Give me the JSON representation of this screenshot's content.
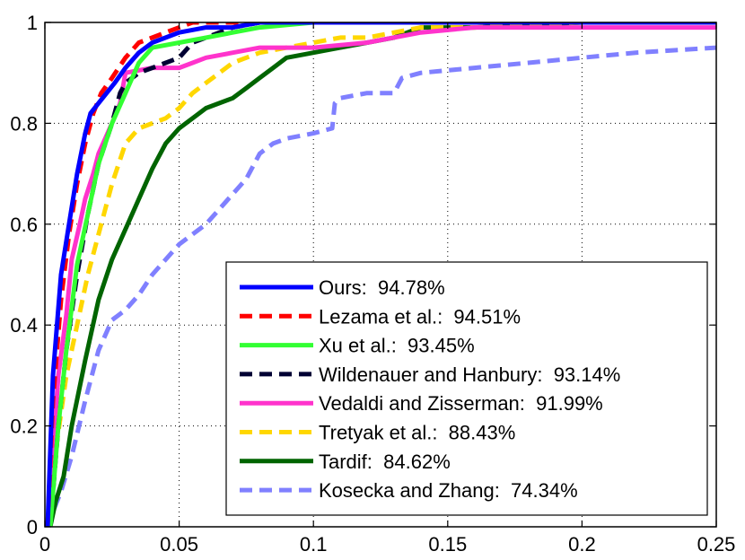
{
  "chart_data": {
    "type": "line",
    "title": "",
    "xlabel": "",
    "ylabel": "",
    "xlim": [
      0,
      0.25
    ],
    "ylim": [
      0,
      1
    ],
    "xticks": [
      0,
      0.05,
      0.1,
      0.15,
      0.2,
      0.25
    ],
    "xtick_labels": [
      "0",
      "0.05",
      "0.1",
      "0.15",
      "0.2",
      "0.25"
    ],
    "yticks": [
      0,
      0.2,
      0.4,
      0.6,
      0.8,
      1
    ],
    "ytick_labels": [
      "0",
      "0.2",
      "0.4",
      "0.6",
      "0.8",
      "1"
    ],
    "grid": true,
    "legend_position": "bottom-right",
    "series": [
      {
        "name": "Kosecka and Zhang:  74.34%",
        "color": "#8080ff",
        "dash": "dashed",
        "x": [
          0.001,
          0.003,
          0.006,
          0.01,
          0.015,
          0.02,
          0.025,
          0.03,
          0.035,
          0.04,
          0.045,
          0.05,
          0.055,
          0.06,
          0.065,
          0.07,
          0.075,
          0.08,
          0.085,
          0.09,
          0.1,
          0.107,
          0.108,
          0.11,
          0.12,
          0.13,
          0.133,
          0.14,
          0.16,
          0.18,
          0.2,
          0.22,
          0.25
        ],
        "y": [
          0,
          0.03,
          0.07,
          0.14,
          0.25,
          0.35,
          0.41,
          0.43,
          0.46,
          0.5,
          0.53,
          0.56,
          0.58,
          0.6,
          0.63,
          0.66,
          0.69,
          0.74,
          0.76,
          0.77,
          0.78,
          0.79,
          0.84,
          0.85,
          0.86,
          0.86,
          0.89,
          0.9,
          0.91,
          0.92,
          0.93,
          0.94,
          0.95
        ]
      },
      {
        "name": "Tardif:  84.62%",
        "color": "#006400",
        "dash": "solid",
        "x": [
          0.002,
          0.004,
          0.007,
          0.01,
          0.015,
          0.02,
          0.025,
          0.03,
          0.035,
          0.04,
          0.045,
          0.05,
          0.055,
          0.06,
          0.065,
          0.07,
          0.075,
          0.08,
          0.085,
          0.09,
          0.1,
          0.11,
          0.12,
          0.13,
          0.14,
          0.16,
          0.2,
          0.25
        ],
        "y": [
          0,
          0.05,
          0.1,
          0.2,
          0.33,
          0.45,
          0.53,
          0.59,
          0.65,
          0.71,
          0.76,
          0.79,
          0.81,
          0.83,
          0.84,
          0.85,
          0.87,
          0.89,
          0.91,
          0.93,
          0.94,
          0.95,
          0.96,
          0.97,
          0.99,
          0.99,
          1.0,
          1.0
        ]
      },
      {
        "name": "Tretyak et al.:  88.43%",
        "color": "#ffd700",
        "dash": "dashed",
        "x": [
          0.001,
          0.004,
          0.008,
          0.012,
          0.016,
          0.02,
          0.025,
          0.03,
          0.035,
          0.04,
          0.045,
          0.05,
          0.055,
          0.06,
          0.065,
          0.07,
          0.075,
          0.08,
          0.09,
          0.1,
          0.11,
          0.12,
          0.13,
          0.14,
          0.16,
          0.2,
          0.25
        ],
        "y": [
          0,
          0.15,
          0.3,
          0.4,
          0.5,
          0.58,
          0.68,
          0.76,
          0.79,
          0.8,
          0.81,
          0.83,
          0.86,
          0.88,
          0.9,
          0.92,
          0.93,
          0.94,
          0.95,
          0.96,
          0.97,
          0.97,
          0.98,
          0.99,
          0.99,
          1.0,
          1.0
        ]
      },
      {
        "name": "Vedaldi and Zisserman:  91.99%",
        "color": "#ff33cc",
        "dash": "solid",
        "x": [
          0.001,
          0.003,
          0.005,
          0.008,
          0.01,
          0.013,
          0.015,
          0.018,
          0.02,
          0.025,
          0.028,
          0.03,
          0.04,
          0.05,
          0.055,
          0.06,
          0.07,
          0.08,
          0.09,
          0.1,
          0.12,
          0.14,
          0.16,
          0.2,
          0.25
        ],
        "y": [
          0,
          0.15,
          0.3,
          0.42,
          0.53,
          0.6,
          0.65,
          0.7,
          0.74,
          0.8,
          0.84,
          0.9,
          0.91,
          0.91,
          0.92,
          0.93,
          0.94,
          0.95,
          0.95,
          0.95,
          0.96,
          0.98,
          0.99,
          0.99,
          0.99
        ]
      },
      {
        "name": "Wildenauer and Hanbury:  93.14%",
        "color": "#000033",
        "dash": "dashed",
        "x": [
          0.002,
          0.005,
          0.008,
          0.012,
          0.016,
          0.02,
          0.025,
          0.028,
          0.03,
          0.035,
          0.04,
          0.045,
          0.05,
          0.055,
          0.06,
          0.07,
          0.08,
          0.1,
          0.15,
          0.25
        ],
        "y": [
          0,
          0.2,
          0.35,
          0.5,
          0.62,
          0.72,
          0.8,
          0.86,
          0.88,
          0.9,
          0.91,
          0.92,
          0.93,
          0.96,
          0.97,
          0.99,
          1.0,
          1.0,
          1.0,
          1.0
        ]
      },
      {
        "name": "Xu et al.:  93.45%",
        "color": "#33ff33",
        "dash": "solid",
        "x": [
          0.002,
          0.005,
          0.008,
          0.012,
          0.016,
          0.02,
          0.025,
          0.03,
          0.035,
          0.04,
          0.05,
          0.06,
          0.07,
          0.08,
          0.1,
          0.15,
          0.25
        ],
        "y": [
          0,
          0.2,
          0.35,
          0.52,
          0.62,
          0.72,
          0.8,
          0.86,
          0.92,
          0.95,
          0.96,
          0.97,
          0.98,
          0.99,
          1.0,
          1.0,
          1.0
        ]
      },
      {
        "name": "Lezama et al.:  94.51%",
        "color": "#ff0000",
        "dash": "dashed",
        "x": [
          0.001,
          0.003,
          0.006,
          0.009,
          0.012,
          0.015,
          0.018,
          0.021,
          0.025,
          0.03,
          0.035,
          0.04,
          0.045,
          0.05,
          0.055,
          0.06,
          0.07,
          0.1,
          0.15,
          0.25
        ],
        "y": [
          0,
          0.25,
          0.45,
          0.58,
          0.68,
          0.76,
          0.82,
          0.86,
          0.89,
          0.93,
          0.96,
          0.97,
          0.98,
          0.99,
          1.0,
          1.0,
          1.0,
          1.0,
          1.0,
          1.0
        ]
      },
      {
        "name": "Ours:  94.78%",
        "color": "#0000ff",
        "dash": "solid",
        "x": [
          0.001,
          0.003,
          0.006,
          0.009,
          0.012,
          0.015,
          0.017,
          0.02,
          0.023,
          0.026,
          0.03,
          0.035,
          0.04,
          0.045,
          0.05,
          0.06,
          0.07,
          0.08,
          0.1,
          0.15,
          0.25
        ],
        "y": [
          0,
          0.3,
          0.5,
          0.6,
          0.7,
          0.78,
          0.82,
          0.84,
          0.86,
          0.88,
          0.91,
          0.94,
          0.96,
          0.97,
          0.98,
          0.99,
          0.99,
          1.0,
          1.0,
          1.0,
          1.0
        ]
      }
    ],
    "legend_order": [
      "Ours:  94.78%",
      "Lezama et al.:  94.51%",
      "Xu et al.:  93.45%",
      "Wildenauer and Hanbury:  93.14%",
      "Vedaldi and Zisserman:  91.99%",
      "Tretyak et al.:  88.43%",
      "Tardif:  84.62%",
      "Kosecka and Zhang:  74.34%"
    ]
  }
}
